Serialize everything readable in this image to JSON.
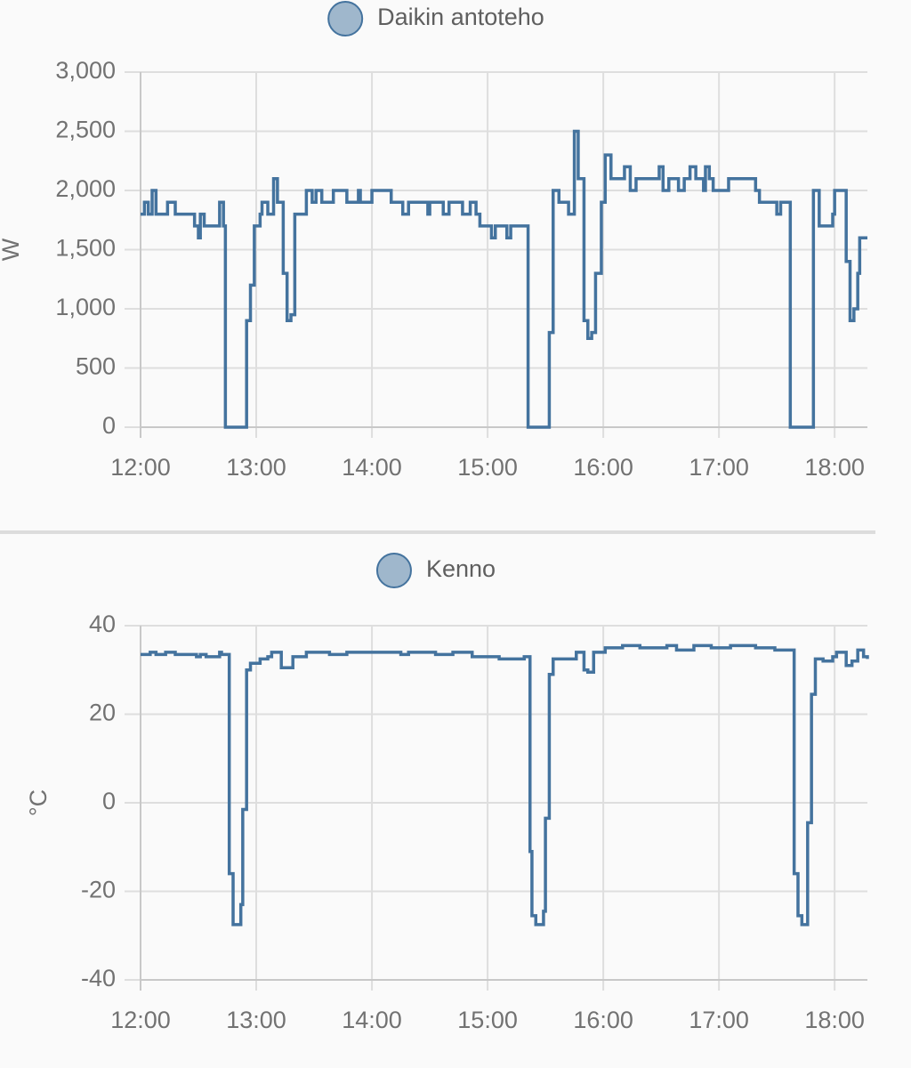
{
  "chart_data": [
    {
      "type": "line",
      "step": true,
      "ylabel": "W",
      "x": [
        "12:00",
        "12:02",
        "12:04",
        "12:06",
        "12:08",
        "12:14",
        "12:18",
        "12:28",
        "12:30",
        "12:31",
        "12:33",
        "12:41",
        "12:43",
        "12:44",
        "12:55",
        "12:57",
        "12:59",
        "13:02",
        "13:03",
        "13:06",
        "13:09",
        "13:11",
        "13:14",
        "13:16",
        "13:18",
        "13:20",
        "13:26",
        "13:29",
        "13:31",
        "13:34",
        "13:40",
        "13:47",
        "13:53",
        "13:54",
        "14:00",
        "14:10",
        "14:16",
        "14:19",
        "14:29",
        "14:30",
        "14:37",
        "14:40",
        "14:47",
        "14:51",
        "14:54",
        "14:56",
        "15:02",
        "15:04",
        "15:10",
        "15:12",
        "15:21",
        "15:32",
        "15:34",
        "15:37",
        "15:42",
        "15:45",
        "15:47",
        "15:50",
        "15:52",
        "15:54",
        "15:56",
        "15:59",
        "16:01",
        "16:04",
        "16:11",
        "16:14",
        "16:17",
        "16:29",
        "16:31",
        "16:34",
        "16:39",
        "16:42",
        "16:45",
        "16:48",
        "16:52",
        "16:53",
        "16:55",
        "16:57",
        "17:05",
        "17:19",
        "17:21",
        "17:30",
        "17:32",
        "17:37",
        "17:49",
        "17:52",
        "17:59",
        "18:00",
        "18:06",
        "18:08",
        "18:10",
        "18:12",
        "18:13",
        "18:17"
      ],
      "series": [
        {
          "name": "Daikin antoteho",
          "color": "#44739e",
          "values": [
            1800,
            1900,
            1800,
            2000,
            1800,
            1900,
            1800,
            1700,
            1600,
            1800,
            1700,
            1900,
            1700,
            0,
            900,
            1200,
            1700,
            1800,
            1900,
            1800,
            2100,
            1900,
            1300,
            900,
            950,
            1800,
            2000,
            1900,
            2000,
            1900,
            2000,
            1900,
            2000,
            1900,
            2000,
            1900,
            1800,
            1900,
            1800,
            1900,
            1800,
            1900,
            1800,
            1900,
            1800,
            1700,
            1600,
            1700,
            1600,
            1700,
            0,
            800,
            2000,
            1900,
            1800,
            2500,
            2100,
            900,
            750,
            800,
            1300,
            1900,
            2300,
            2100,
            2200,
            2000,
            2100,
            2200,
            2000,
            2100,
            2000,
            2100,
            2200,
            2100,
            2000,
            2200,
            2100,
            2000,
            2100,
            2000,
            1900,
            1800,
            1900,
            0,
            2000,
            1700,
            1800,
            2000,
            1400,
            900,
            1000,
            1300,
            1600,
            1600
          ]
        }
      ],
      "xlim": [
        "12:00",
        "18:17"
      ],
      "xticks": [
        "12:00",
        "13:00",
        "14:00",
        "15:00",
        "16:00",
        "17:00",
        "18:00"
      ],
      "ylim": [
        0,
        3000
      ],
      "yticks": [
        0,
        500,
        {
          "value": 1000,
          "label": "1,000"
        },
        {
          "value": 1500,
          "label": "1,500"
        },
        {
          "value": 2000,
          "label": "2,000"
        },
        {
          "value": 2500,
          "label": "2,500"
        },
        {
          "value": 3000,
          "label": "3,000"
        }
      ],
      "grid": true
    },
    {
      "type": "line",
      "step": true,
      "ylabel": "°C",
      "x": [
        "12:00",
        "12:05",
        "12:08",
        "12:13",
        "12:18",
        "12:29",
        "12:31",
        "12:34",
        "12:41",
        "12:42",
        "12:46",
        "12:48",
        "12:52",
        "12:53",
        "12:55",
        "12:57",
        "13:02",
        "13:06",
        "13:08",
        "13:13",
        "13:19",
        "13:26",
        "13:38",
        "13:47",
        "14:15",
        "14:19",
        "14:33",
        "14:42",
        "14:52",
        "15:06",
        "15:19",
        "15:22",
        "15:23",
        "15:25",
        "15:29",
        "15:30",
        "15:32",
        "15:34",
        "15:46",
        "15:50",
        "15:52",
        "15:55",
        "16:01",
        "16:10",
        "16:19",
        "16:33",
        "16:38",
        "16:47",
        "16:56",
        "17:06",
        "17:19",
        "17:29",
        "17:39",
        "17:41",
        "17:43",
        "17:46",
        "17:48",
        "17:50",
        "17:54",
        "17:59",
        "18:01",
        "18:06",
        "18:09",
        "18:12",
        "18:15",
        "18:17"
      ],
      "series": [
        {
          "name": "Kenno",
          "color": "#44739e",
          "values": [
            33.5,
            34,
            33.5,
            34,
            33.5,
            33,
            33.5,
            33,
            34,
            33.5,
            -16,
            -27.5,
            -23,
            -1.5,
            30,
            31.5,
            32.5,
            33,
            34,
            30.5,
            33,
            34,
            33.5,
            34,
            33.5,
            34,
            33.5,
            34,
            33,
            32.5,
            33,
            -11,
            -25.5,
            -27.5,
            -24.5,
            -3.5,
            29,
            32.5,
            34,
            30,
            29.5,
            34,
            35,
            35.5,
            35,
            35.5,
            34.5,
            35.5,
            35,
            35.5,
            35,
            34.5,
            -16,
            -25.5,
            -27.5,
            -4.5,
            24.5,
            32.5,
            32,
            33,
            34,
            31,
            32,
            34.5,
            33,
            32.5
          ]
        }
      ],
      "xlim": [
        "12:00",
        "18:17"
      ],
      "xticks": [
        "12:00",
        "13:00",
        "14:00",
        "15:00",
        "16:00",
        "17:00",
        "18:00"
      ],
      "ylim": [
        -40,
        40
      ],
      "yticks": [
        -40,
        -20,
        0,
        20,
        40
      ],
      "grid": true
    }
  ]
}
